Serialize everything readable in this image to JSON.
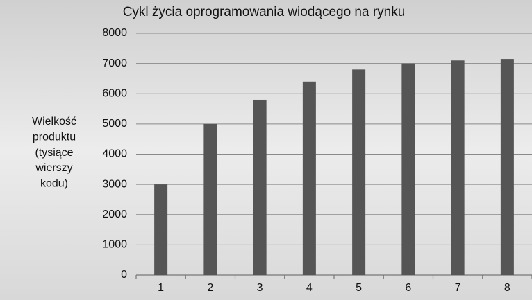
{
  "chart_data": {
    "type": "bar",
    "title": "Cykl życia oprogramowania wiodącego na rynku",
    "ylabel": [
      "Wielkość",
      "produktu",
      "(tysiące",
      "wierszy",
      "kodu)"
    ],
    "categories": [
      "1",
      "2",
      "3",
      "4",
      "5",
      "6",
      "7",
      "8"
    ],
    "values": [
      3000,
      5000,
      5800,
      6400,
      6800,
      7000,
      7100,
      7150
    ],
    "color": "#555555",
    "ylim": [
      0,
      8000
    ],
    "yticks": [
      0,
      1000,
      2000,
      3000,
      4000,
      5000,
      6000,
      7000,
      8000
    ],
    "grid": true
  }
}
